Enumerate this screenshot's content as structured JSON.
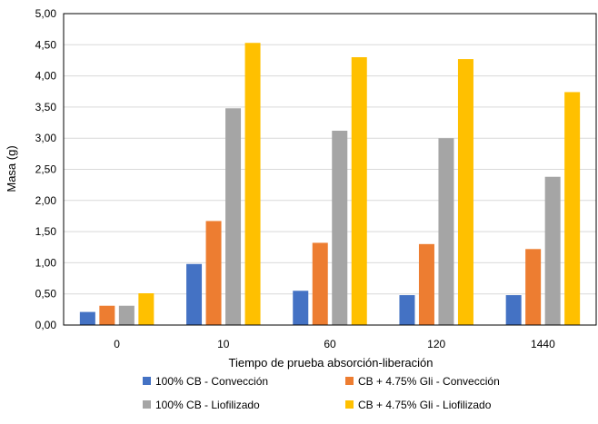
{
  "chart_data": {
    "type": "bar",
    "title": "",
    "xlabel": "Tiempo de prueba absorción-liberación",
    "ylabel": "Masa (g)",
    "ylim": [
      0,
      5
    ],
    "y_ticks": [
      "0,00",
      "0,50",
      "1,00",
      "1,50",
      "2,00",
      "2,50",
      "3,00",
      "3,50",
      "4,00",
      "4,50",
      "5,00"
    ],
    "grid": "horizontal",
    "legend_position": "bottom",
    "categories": [
      "0",
      "10",
      "60",
      "120",
      "1440"
    ],
    "series": [
      {
        "name": "100% CB - Convección",
        "color": "#4472C4",
        "values": [
          0.21,
          0.98,
          0.55,
          0.48,
          0.48
        ]
      },
      {
        "name": "CB + 4.75% Gli - Convección",
        "color": "#ED7D31",
        "values": [
          0.31,
          1.67,
          1.32,
          1.3,
          1.22
        ]
      },
      {
        "name": "100% CB - Liofilizado",
        "color": "#A5A5A5",
        "values": [
          0.31,
          3.48,
          3.12,
          3.0,
          2.38
        ]
      },
      {
        "name": "CB + 4.75% Gli - Liofilizado",
        "color": "#FFC000",
        "values": [
          0.51,
          4.53,
          4.3,
          4.27,
          3.74
        ]
      }
    ]
  }
}
